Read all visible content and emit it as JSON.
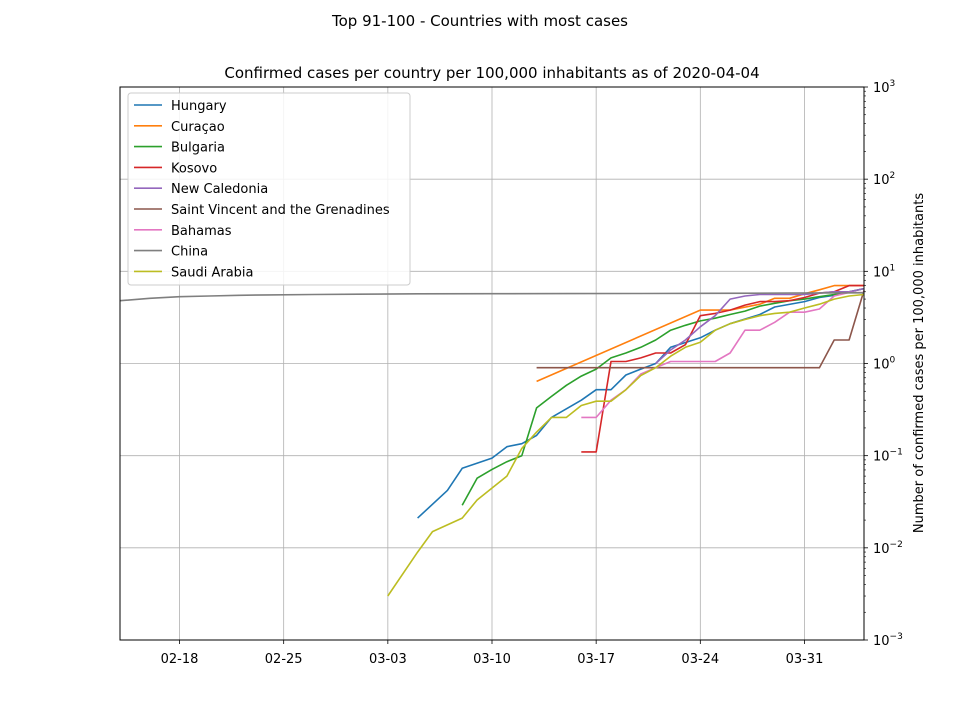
{
  "chart_data": {
    "type": "line",
    "suptitle": "Top 91-100 - Countries with most cases",
    "title": "Confirmed cases per country per 100,000 inhabitants as of 2020-04-04",
    "xlabel": "",
    "ylabel": "Number of confirmed cases per 100,000 inhabitants",
    "yscale": "log",
    "ylim": [
      0.001,
      1000
    ],
    "xlim": [
      "2020-02-14",
      "2020-04-04"
    ],
    "x_ticks": [
      {
        "date": "2020-02-18",
        "label": "02-18"
      },
      {
        "date": "2020-02-25",
        "label": "02-25"
      },
      {
        "date": "2020-03-03",
        "label": "03-03"
      },
      {
        "date": "2020-03-10",
        "label": "03-10"
      },
      {
        "date": "2020-03-17",
        "label": "03-17"
      },
      {
        "date": "2020-03-24",
        "label": "03-24"
      },
      {
        "date": "2020-03-31",
        "label": "03-31"
      }
    ],
    "y_ticks": [
      {
        "value": 0.001,
        "base": "10",
        "exp": "−3"
      },
      {
        "value": 0.01,
        "base": "10",
        "exp": "−2"
      },
      {
        "value": 0.1,
        "base": "10",
        "exp": "−1"
      },
      {
        "value": 1,
        "base": "10",
        "exp": "0"
      },
      {
        "value": 10,
        "base": "10",
        "exp": "1"
      },
      {
        "value": 100,
        "base": "10",
        "exp": "2"
      },
      {
        "value": 1000,
        "base": "10",
        "exp": "3"
      }
    ],
    "grid": true,
    "legend_position": "upper-left",
    "series": [
      {
        "name": "Hungary",
        "color": "#1f77b4",
        "x": [
          "2020-03-05",
          "2020-03-07",
          "2020-03-08",
          "2020-03-10",
          "2020-03-11",
          "2020-03-12",
          "2020-03-13",
          "2020-03-14",
          "2020-03-16",
          "2020-03-17",
          "2020-03-18",
          "2020-03-19",
          "2020-03-20",
          "2020-03-21",
          "2020-03-22",
          "2020-03-24",
          "2020-03-25",
          "2020-03-26",
          "2020-03-28",
          "2020-03-29",
          "2020-03-31",
          "2020-04-01",
          "2020-04-02",
          "2020-04-04"
        ],
        "y": [
          0.021,
          0.042,
          0.073,
          0.094,
          0.125,
          0.135,
          0.166,
          0.26,
          0.4,
          0.52,
          0.52,
          0.75,
          0.87,
          1.0,
          1.5,
          1.9,
          2.3,
          2.7,
          3.4,
          4.1,
          4.7,
          5.2,
          5.5,
          6.5
        ]
      },
      {
        "name": "Curaçao",
        "color": "#ff7f0e",
        "x": [
          "2020-03-13",
          "2020-03-24",
          "2020-03-25",
          "2020-03-26",
          "2020-03-28",
          "2020-03-29",
          "2020-03-30",
          "2020-03-31",
          "2020-04-01",
          "2020-04-02",
          "2020-04-03",
          "2020-04-04"
        ],
        "y": [
          0.64,
          3.8,
          3.8,
          3.8,
          4.4,
          5.1,
          5.1,
          5.7,
          6.3,
          7.0,
          7.0,
          7.0
        ]
      },
      {
        "name": "Bulgaria",
        "color": "#2ca02c",
        "x": [
          "2020-03-08",
          "2020-03-09",
          "2020-03-10",
          "2020-03-11",
          "2020-03-12",
          "2020-03-13",
          "2020-03-14",
          "2020-03-15",
          "2020-03-16",
          "2020-03-17",
          "2020-03-18",
          "2020-03-19",
          "2020-03-20",
          "2020-03-21",
          "2020-03-22",
          "2020-03-23",
          "2020-03-24",
          "2020-03-25",
          "2020-03-26",
          "2020-03-27",
          "2020-03-28",
          "2020-03-29",
          "2020-03-30",
          "2020-03-31",
          "2020-04-01",
          "2020-04-02",
          "2020-04-03",
          "2020-04-04"
        ],
        "y": [
          0.029,
          0.057,
          0.071,
          0.086,
          0.1,
          0.33,
          0.44,
          0.58,
          0.73,
          0.87,
          1.15,
          1.3,
          1.5,
          1.8,
          2.3,
          2.6,
          2.9,
          3.1,
          3.4,
          3.7,
          4.2,
          4.5,
          4.8,
          5.0,
          5.3,
          5.6,
          6.0,
          6.5
        ]
      },
      {
        "name": "Kosovo",
        "color": "#d62728",
        "x": [
          "2020-03-16",
          "2020-03-17",
          "2020-03-18",
          "2020-03-19",
          "2020-03-20",
          "2020-03-21",
          "2020-03-22",
          "2020-03-23",
          "2020-03-24",
          "2020-03-25",
          "2020-03-26",
          "2020-03-27",
          "2020-03-28",
          "2020-03-29",
          "2020-03-30",
          "2020-03-31",
          "2020-04-01",
          "2020-04-02",
          "2020-04-03",
          "2020-04-04"
        ],
        "y": [
          0.11,
          0.11,
          1.05,
          1.05,
          1.15,
          1.3,
          1.3,
          1.6,
          3.3,
          3.5,
          3.8,
          4.3,
          4.7,
          4.7,
          4.8,
          5.2,
          5.8,
          6.0,
          7.0,
          7.0
        ]
      },
      {
        "name": "New Caledonia",
        "color": "#9467bd",
        "x": [
          "2020-03-21",
          "2020-03-22",
          "2020-03-23",
          "2020-03-24",
          "2020-03-25",
          "2020-03-26",
          "2020-03-27",
          "2020-03-28",
          "2020-03-29",
          "2020-03-30",
          "2020-03-31",
          "2020-04-01",
          "2020-04-02",
          "2020-04-03",
          "2020-04-04"
        ],
        "y": [
          1.0,
          1.4,
          1.8,
          2.5,
          3.3,
          5.0,
          5.4,
          5.6,
          5.6,
          5.6,
          5.6,
          5.8,
          6.0,
          6.0,
          6.5
        ]
      },
      {
        "name": "Saint Vincent and the Grenadines",
        "color": "#8c564b",
        "x": [
          "2020-03-13",
          "2020-03-15",
          "2020-03-17",
          "2020-03-19",
          "2020-03-21",
          "2020-03-23",
          "2020-03-25",
          "2020-03-27",
          "2020-03-29",
          "2020-03-31",
          "2020-04-01",
          "2020-04-02",
          "2020-04-03",
          "2020-04-04"
        ],
        "y": [
          0.9,
          0.9,
          0.9,
          0.9,
          0.9,
          0.9,
          0.9,
          0.9,
          0.9,
          0.9,
          0.9,
          1.8,
          1.8,
          6.2
        ]
      },
      {
        "name": "Bahamas",
        "color": "#e377c2",
        "x": [
          "2020-03-16",
          "2020-03-17",
          "2020-03-18",
          "2020-03-19",
          "2020-03-20",
          "2020-03-21",
          "2020-03-22",
          "2020-03-23",
          "2020-03-24",
          "2020-03-25",
          "2020-03-26",
          "2020-03-27",
          "2020-03-28",
          "2020-03-29",
          "2020-03-30",
          "2020-03-31",
          "2020-04-01",
          "2020-04-02",
          "2020-04-03",
          "2020-04-04"
        ],
        "y": [
          0.26,
          0.26,
          0.4,
          0.52,
          0.77,
          0.9,
          1.05,
          1.05,
          1.05,
          1.05,
          1.3,
          2.3,
          2.3,
          2.8,
          3.6,
          3.6,
          3.9,
          5.4,
          5.9,
          5.9
        ]
      },
      {
        "name": "China",
        "color": "#7f7f7f",
        "x": [
          "2020-02-14",
          "2020-02-16",
          "2020-02-18",
          "2020-02-20",
          "2020-02-22",
          "2020-02-24",
          "2020-02-27",
          "2020-03-01",
          "2020-03-05",
          "2020-03-10",
          "2020-03-15",
          "2020-03-20",
          "2020-03-25",
          "2020-03-30",
          "2020-04-04"
        ],
        "y": [
          4.8,
          5.1,
          5.3,
          5.4,
          5.5,
          5.55,
          5.6,
          5.65,
          5.7,
          5.72,
          5.74,
          5.75,
          5.77,
          5.8,
          5.85
        ]
      },
      {
        "name": "Saudi Arabia",
        "color": "#bcbd22",
        "x": [
          "2020-03-03",
          "2020-03-05",
          "2020-03-06",
          "2020-03-08",
          "2020-03-09",
          "2020-03-11",
          "2020-03-12",
          "2020-03-13",
          "2020-03-14",
          "2020-03-15",
          "2020-03-16",
          "2020-03-17",
          "2020-03-18",
          "2020-03-19",
          "2020-03-20",
          "2020-03-21",
          "2020-03-22",
          "2020-03-23",
          "2020-03-24",
          "2020-03-25",
          "2020-03-26",
          "2020-03-27",
          "2020-03-28",
          "2020-03-29",
          "2020-03-30",
          "2020-03-31",
          "2020-04-01",
          "2020-04-02",
          "2020-04-03",
          "2020-04-04"
        ],
        "y": [
          0.003,
          0.009,
          0.015,
          0.021,
          0.033,
          0.06,
          0.12,
          0.18,
          0.26,
          0.26,
          0.35,
          0.39,
          0.39,
          0.52,
          0.74,
          0.9,
          1.2,
          1.5,
          1.7,
          2.3,
          2.7,
          3.0,
          3.3,
          3.5,
          3.6,
          4.0,
          4.4,
          5.0,
          5.4,
          5.6
        ]
      }
    ]
  }
}
